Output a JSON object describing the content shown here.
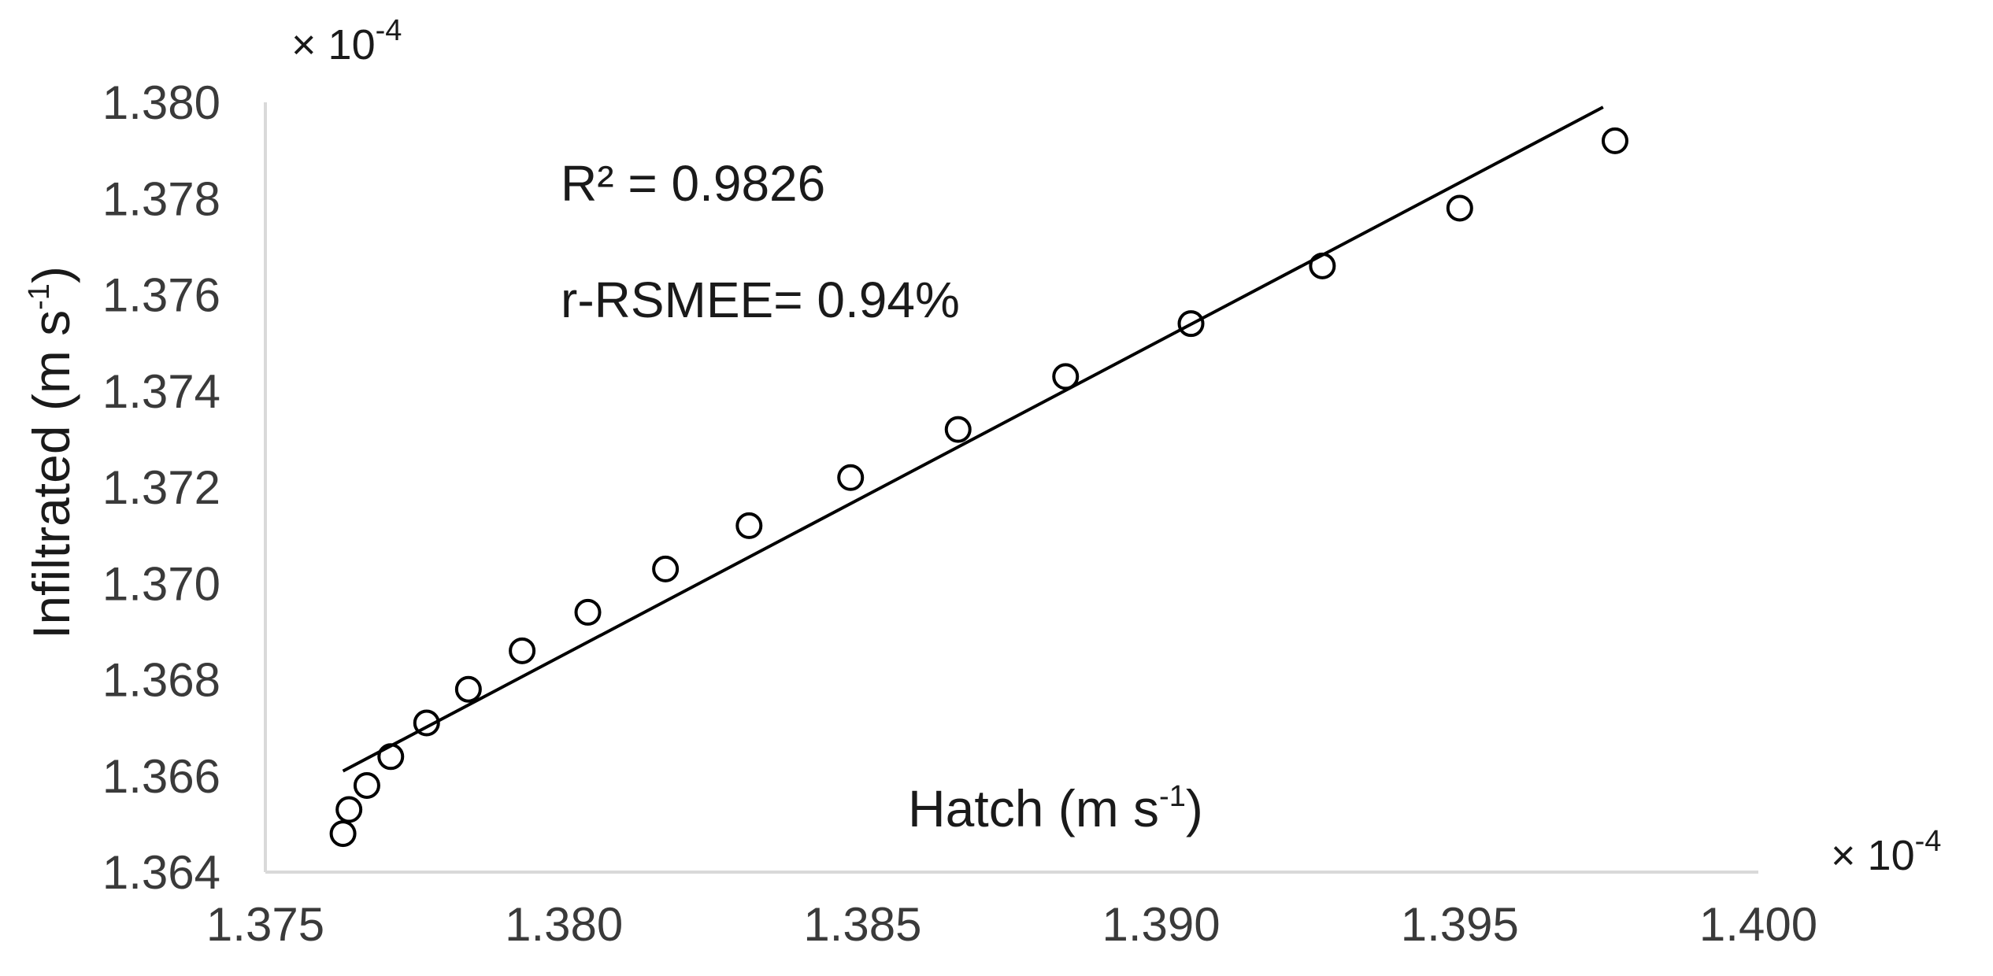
{
  "chart_data": {
    "type": "scatter",
    "xlabel": "Hatch (m s",
    "xlabel_sup": "-1",
    "xlabel_close": ")",
    "ylabel": "Infiltrated (m s",
    "ylabel_sup": "-1",
    "ylabel_close": ")",
    "x_multiplier": "× 10",
    "x_multiplier_exp": "-4",
    "y_multiplier": "× 10",
    "y_multiplier_exp": "-4",
    "xlim": [
      1.375,
      1.4
    ],
    "ylim": [
      1.364,
      1.38
    ],
    "x_ticks": [
      "1.375",
      "1.380",
      "1.385",
      "1.390",
      "1.395",
      "1.400"
    ],
    "y_ticks": [
      "1.364",
      "1.366",
      "1.368",
      "1.370",
      "1.372",
      "1.374",
      "1.376",
      "1.378",
      "1.380"
    ],
    "grid": false,
    "points": [
      {
        "x": 1.3763,
        "y": 1.3648
      },
      {
        "x": 1.3764,
        "y": 1.3653
      },
      {
        "x": 1.3767,
        "y": 1.3658
      },
      {
        "x": 1.3771,
        "y": 1.3664
      },
      {
        "x": 1.3777,
        "y": 1.3671
      },
      {
        "x": 1.3784,
        "y": 1.3678
      },
      {
        "x": 1.3793,
        "y": 1.3686
      },
      {
        "x": 1.3804,
        "y": 1.3694
      },
      {
        "x": 1.3817,
        "y": 1.3703
      },
      {
        "x": 1.3831,
        "y": 1.3712
      },
      {
        "x": 1.3848,
        "y": 1.3722
      },
      {
        "x": 1.3866,
        "y": 1.3732
      },
      {
        "x": 1.3884,
        "y": 1.3743
      },
      {
        "x": 1.3905,
        "y": 1.3754
      },
      {
        "x": 1.3927,
        "y": 1.3766
      },
      {
        "x": 1.395,
        "y": 1.3778
      },
      {
        "x": 1.3976,
        "y": 1.3792
      }
    ],
    "trendline": {
      "x": [
        1.3763,
        1.3974
      ],
      "y": [
        1.3661,
        1.3799
      ]
    },
    "annotations": [
      "R² = 0.9826",
      "r-RSMEE= 0.94%"
    ],
    "colors": {
      "axis": "#d9d9d9",
      "marker": "#000000",
      "line": "#000000",
      "text": "#1a1a1a"
    }
  }
}
